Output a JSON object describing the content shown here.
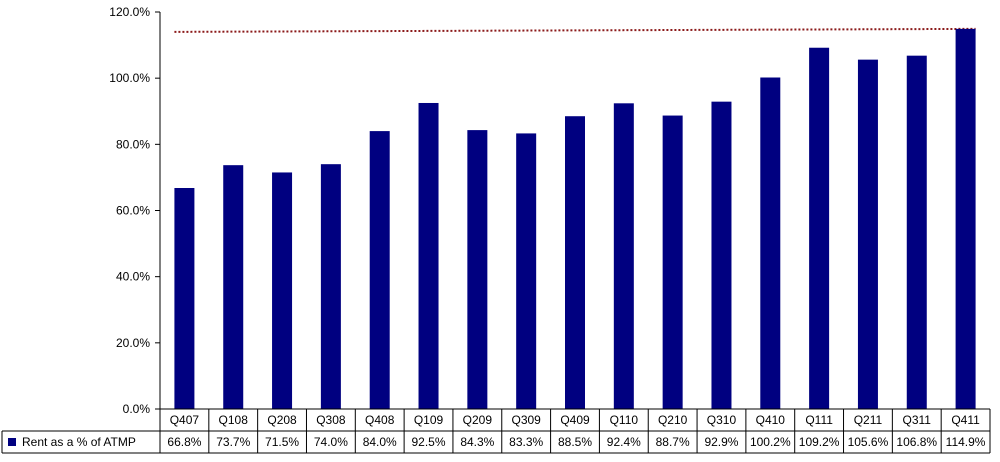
{
  "chart_data": {
    "type": "bar",
    "categories": [
      "Q407",
      "Q108",
      "Q208",
      "Q308",
      "Q408",
      "Q109",
      "Q209",
      "Q309",
      "Q409",
      "Q110",
      "Q210",
      "Q310",
      "Q410",
      "Q111",
      "Q211",
      "Q311",
      "Q411"
    ],
    "series": [
      {
        "name": "Rent as a % of ATMP",
        "values": [
          66.8,
          73.7,
          71.5,
          74.0,
          84.0,
          92.5,
          84.3,
          83.3,
          88.5,
          92.4,
          88.7,
          92.9,
          100.2,
          109.2,
          105.6,
          106.8,
          114.9
        ],
        "value_labels": [
          "66.8%",
          "73.7%",
          "71.5%",
          "74.0%",
          "84.0%",
          "92.5%",
          "84.3%",
          "83.3%",
          "88.5%",
          "92.4%",
          "88.7%",
          "92.9%",
          "100.2%",
          "109.2%",
          "105.6%",
          "106.8%",
          "114.9%"
        ],
        "color": "#000080"
      }
    ],
    "yticks": [
      0,
      20,
      40,
      60,
      80,
      100,
      120
    ],
    "ytick_labels": [
      "0.0%",
      "20.0%",
      "40.0%",
      "60.0%",
      "80.0%",
      "100.0%",
      "120.0%"
    ],
    "ylim": [
      0,
      120
    ],
    "reference_line": {
      "value": 114.9,
      "color": "#8b1a1a",
      "style": "dotted"
    },
    "grid": false,
    "legend": "bottom-left data table",
    "title": "",
    "xlabel": "",
    "ylabel": ""
  }
}
